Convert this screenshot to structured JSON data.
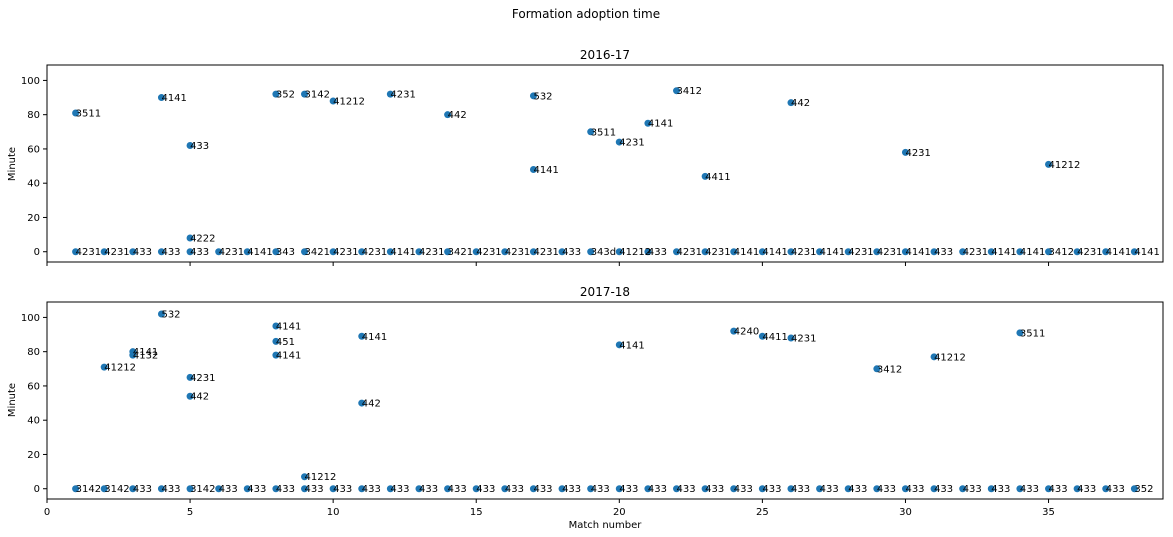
{
  "figure": {
    "title": "Formation adoption time"
  },
  "point_color": "#1f77b4",
  "chart_data": [
    {
      "type": "scatter",
      "title": "2016-17",
      "xlabel": "",
      "ylabel": "Minute",
      "xlim": [
        0,
        39
      ],
      "ylim": [
        -6,
        109
      ],
      "xticks": [
        0,
        5,
        10,
        15,
        20,
        25,
        30,
        35
      ],
      "xtick_labels_visible": false,
      "yticks": [
        0,
        20,
        40,
        60,
        80,
        100
      ],
      "points": [
        {
          "x": 1,
          "y": 0,
          "label": "4231"
        },
        {
          "x": 2,
          "y": 0,
          "label": "4231"
        },
        {
          "x": 3,
          "y": 0,
          "label": "433"
        },
        {
          "x": 4,
          "y": 0,
          "label": "433"
        },
        {
          "x": 5,
          "y": 0,
          "label": "433"
        },
        {
          "x": 6,
          "y": 0,
          "label": "4231"
        },
        {
          "x": 7,
          "y": 0,
          "label": "4141"
        },
        {
          "x": 8,
          "y": 0,
          "label": "343"
        },
        {
          "x": 9,
          "y": 0,
          "label": "3421"
        },
        {
          "x": 10,
          "y": 0,
          "label": "4231"
        },
        {
          "x": 11,
          "y": 0,
          "label": "4231"
        },
        {
          "x": 12,
          "y": 0,
          "label": "4141"
        },
        {
          "x": 13,
          "y": 0,
          "label": "4231"
        },
        {
          "x": 14,
          "y": 0,
          "label": "3421"
        },
        {
          "x": 15,
          "y": 0,
          "label": "4231"
        },
        {
          "x": 16,
          "y": 0,
          "label": "4231"
        },
        {
          "x": 17,
          "y": 0,
          "label": "4231"
        },
        {
          "x": 18,
          "y": 0,
          "label": "433"
        },
        {
          "x": 19,
          "y": 0,
          "label": "343d"
        },
        {
          "x": 20,
          "y": 0,
          "label": "41212"
        },
        {
          "x": 21,
          "y": 0,
          "label": "433"
        },
        {
          "x": 22,
          "y": 0,
          "label": "4231"
        },
        {
          "x": 23,
          "y": 0,
          "label": "4231"
        },
        {
          "x": 24,
          "y": 0,
          "label": "4141"
        },
        {
          "x": 25,
          "y": 0,
          "label": "4141"
        },
        {
          "x": 26,
          "y": 0,
          "label": "4231"
        },
        {
          "x": 27,
          "y": 0,
          "label": "4141"
        },
        {
          "x": 28,
          "y": 0,
          "label": "4231"
        },
        {
          "x": 29,
          "y": 0,
          "label": "4231"
        },
        {
          "x": 30,
          "y": 0,
          "label": "4141"
        },
        {
          "x": 31,
          "y": 0,
          "label": "433"
        },
        {
          "x": 32,
          "y": 0,
          "label": "4231"
        },
        {
          "x": 33,
          "y": 0,
          "label": "4141"
        },
        {
          "x": 34,
          "y": 0,
          "label": "4141"
        },
        {
          "x": 35,
          "y": 0,
          "label": "3412"
        },
        {
          "x": 36,
          "y": 0,
          "label": "4231"
        },
        {
          "x": 37,
          "y": 0,
          "label": "4141"
        },
        {
          "x": 38,
          "y": 0,
          "label": "4141"
        },
        {
          "x": 1,
          "y": 81,
          "label": "3511"
        },
        {
          "x": 4,
          "y": 90,
          "label": "4141"
        },
        {
          "x": 5,
          "y": 62,
          "label": "433"
        },
        {
          "x": 5,
          "y": 8,
          "label": "4222"
        },
        {
          "x": 8,
          "y": 92,
          "label": "352"
        },
        {
          "x": 9,
          "y": 92,
          "label": "3142"
        },
        {
          "x": 10,
          "y": 88,
          "label": "41212"
        },
        {
          "x": 12,
          "y": 92,
          "label": "4231"
        },
        {
          "x": 14,
          "y": 80,
          "label": "442"
        },
        {
          "x": 17,
          "y": 91,
          "label": "532"
        },
        {
          "x": 17,
          "y": 48,
          "label": "4141"
        },
        {
          "x": 19,
          "y": 70,
          "label": "3511"
        },
        {
          "x": 20,
          "y": 64,
          "label": "4231"
        },
        {
          "x": 21,
          "y": 75,
          "label": "4141"
        },
        {
          "x": 22,
          "y": 94,
          "label": "3412"
        },
        {
          "x": 23,
          "y": 44,
          "label": "4411"
        },
        {
          "x": 26,
          "y": 87,
          "label": "442"
        },
        {
          "x": 30,
          "y": 58,
          "label": "4231"
        },
        {
          "x": 35,
          "y": 51,
          "label": "41212"
        }
      ]
    },
    {
      "type": "scatter",
      "title": "2017-18",
      "xlabel": "Match number",
      "ylabel": "Minute",
      "xlim": [
        0,
        39
      ],
      "ylim": [
        -6,
        109
      ],
      "xticks": [
        0,
        5,
        10,
        15,
        20,
        25,
        30,
        35
      ],
      "xtick_labels_visible": true,
      "yticks": [
        0,
        20,
        40,
        60,
        80,
        100
      ],
      "points": [
        {
          "x": 1,
          "y": 0,
          "label": "3142"
        },
        {
          "x": 2,
          "y": 0,
          "label": "3142"
        },
        {
          "x": 3,
          "y": 0,
          "label": "433"
        },
        {
          "x": 4,
          "y": 0,
          "label": "433"
        },
        {
          "x": 5,
          "y": 0,
          "label": "3142"
        },
        {
          "x": 6,
          "y": 0,
          "label": "433"
        },
        {
          "x": 7,
          "y": 0,
          "label": "433"
        },
        {
          "x": 8,
          "y": 0,
          "label": "433"
        },
        {
          "x": 9,
          "y": 0,
          "label": "433"
        },
        {
          "x": 10,
          "y": 0,
          "label": "433"
        },
        {
          "x": 11,
          "y": 0,
          "label": "433"
        },
        {
          "x": 12,
          "y": 0,
          "label": "433"
        },
        {
          "x": 13,
          "y": 0,
          "label": "433"
        },
        {
          "x": 14,
          "y": 0,
          "label": "433"
        },
        {
          "x": 15,
          "y": 0,
          "label": "433"
        },
        {
          "x": 16,
          "y": 0,
          "label": "433"
        },
        {
          "x": 17,
          "y": 0,
          "label": "433"
        },
        {
          "x": 18,
          "y": 0,
          "label": "433"
        },
        {
          "x": 19,
          "y": 0,
          "label": "433"
        },
        {
          "x": 20,
          "y": 0,
          "label": "433"
        },
        {
          "x": 21,
          "y": 0,
          "label": "433"
        },
        {
          "x": 22,
          "y": 0,
          "label": "433"
        },
        {
          "x": 23,
          "y": 0,
          "label": "433"
        },
        {
          "x": 24,
          "y": 0,
          "label": "433"
        },
        {
          "x": 25,
          "y": 0,
          "label": "433"
        },
        {
          "x": 26,
          "y": 0,
          "label": "433"
        },
        {
          "x": 27,
          "y": 0,
          "label": "433"
        },
        {
          "x": 28,
          "y": 0,
          "label": "433"
        },
        {
          "x": 29,
          "y": 0,
          "label": "433"
        },
        {
          "x": 30,
          "y": 0,
          "label": "433"
        },
        {
          "x": 31,
          "y": 0,
          "label": "433"
        },
        {
          "x": 32,
          "y": 0,
          "label": "433"
        },
        {
          "x": 33,
          "y": 0,
          "label": "433"
        },
        {
          "x": 34,
          "y": 0,
          "label": "433"
        },
        {
          "x": 35,
          "y": 0,
          "label": "433"
        },
        {
          "x": 36,
          "y": 0,
          "label": "433"
        },
        {
          "x": 37,
          "y": 0,
          "label": "433"
        },
        {
          "x": 38,
          "y": 0,
          "label": "352"
        },
        {
          "x": 2,
          "y": 71,
          "label": "41212"
        },
        {
          "x": 3,
          "y": 80,
          "label": "4141"
        },
        {
          "x": 3,
          "y": 78,
          "label": "4132"
        },
        {
          "x": 4,
          "y": 102,
          "label": "532"
        },
        {
          "x": 5,
          "y": 65,
          "label": "4231"
        },
        {
          "x": 5,
          "y": 54,
          "label": "442"
        },
        {
          "x": 8,
          "y": 95,
          "label": "4141"
        },
        {
          "x": 8,
          "y": 86,
          "label": "451"
        },
        {
          "x": 8,
          "y": 78,
          "label": "4141"
        },
        {
          "x": 9,
          "y": 7,
          "label": "41212"
        },
        {
          "x": 11,
          "y": 89,
          "label": "4141"
        },
        {
          "x": 11,
          "y": 50,
          "label": "442"
        },
        {
          "x": 20,
          "y": 84,
          "label": "4141"
        },
        {
          "x": 24,
          "y": 92,
          "label": "4240"
        },
        {
          "x": 25,
          "y": 89,
          "label": "4411"
        },
        {
          "x": 26,
          "y": 88,
          "label": "4231"
        },
        {
          "x": 29,
          "y": 70,
          "label": "3412"
        },
        {
          "x": 31,
          "y": 77,
          "label": "41212"
        },
        {
          "x": 34,
          "y": 91,
          "label": "3511"
        }
      ]
    }
  ]
}
